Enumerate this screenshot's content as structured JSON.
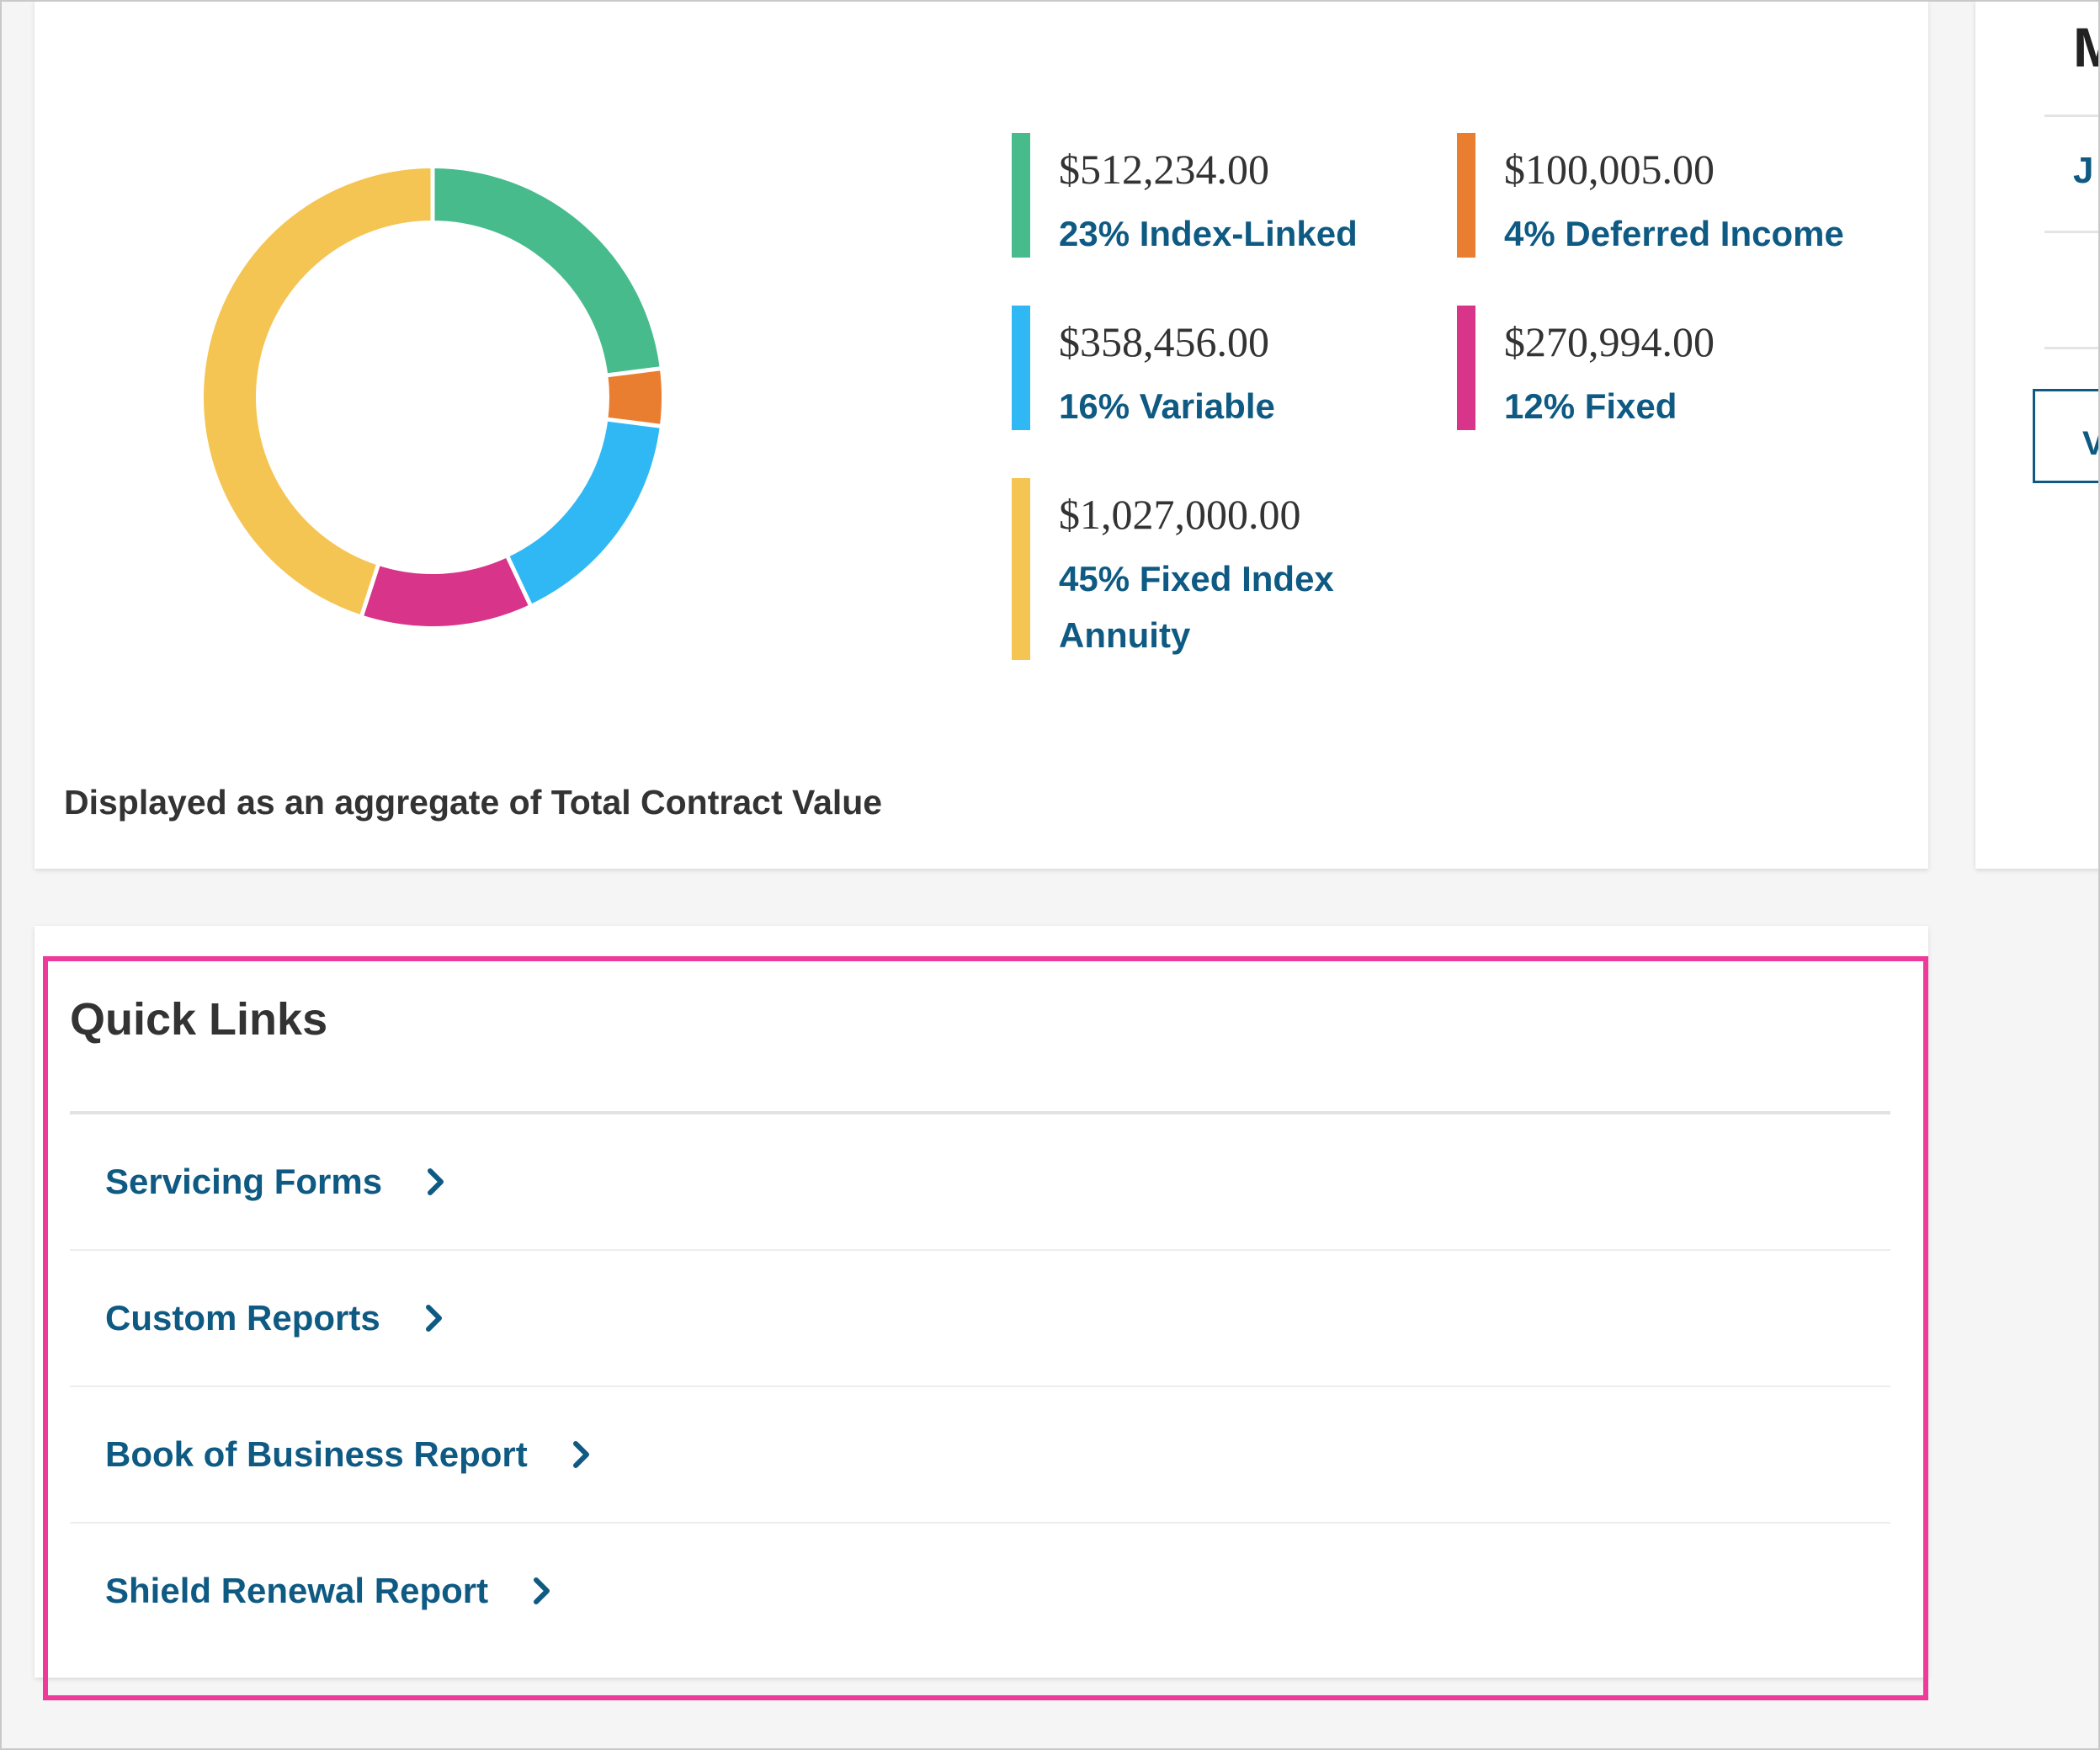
{
  "allocation": {
    "segments": [
      {
        "amount": "$512,234.00",
        "label": "23% Index-Linked",
        "percent": 23,
        "color": "#47bb8c"
      },
      {
        "amount": "$100,005.00",
        "label": "4% Deferred Income",
        "percent": 4,
        "color": "#e97d30"
      },
      {
        "amount": "$358,456.00",
        "label": "16% Variable",
        "percent": 16,
        "color": "#2fb8f4"
      },
      {
        "amount": "$270,994.00",
        "label": "12% Fixed",
        "percent": 12,
        "color": "#d8348a"
      },
      {
        "amount": "$1,027,000.00",
        "label": "45% Fixed Index Annuity",
        "percent": 45,
        "color": "#f4c552"
      }
    ],
    "footnote": "Displayed as an aggregate of Total Contract Value"
  },
  "side_panel": {
    "heading": "M",
    "link": "J",
    "button_label": "V"
  },
  "quick_links": {
    "title": "Quick Links",
    "items": [
      {
        "label": "Servicing Forms",
        "icon": "chevron-right-icon"
      },
      {
        "label": "Custom Reports",
        "icon": "chevron-right-icon"
      },
      {
        "label": "Book of Business Report",
        "icon": "chevron-right-icon"
      },
      {
        "label": "Shield Renewal Report",
        "icon": "chevron-right-icon"
      }
    ]
  },
  "colors": {
    "link": "#0e5a83",
    "text": "#333333",
    "highlight": "#ee3a9a"
  }
}
